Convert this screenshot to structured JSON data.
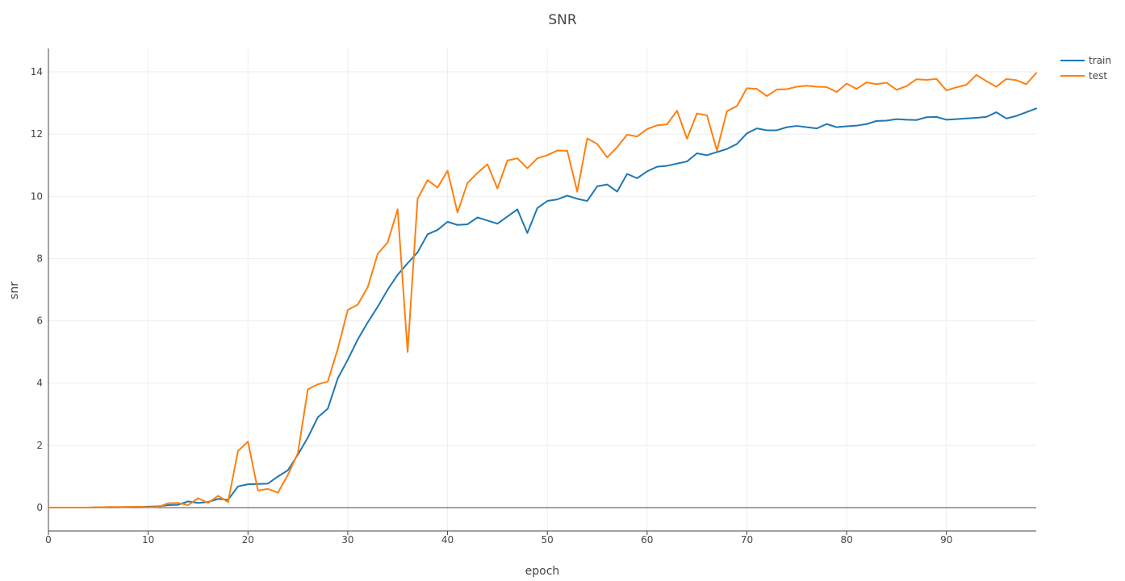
{
  "chart_data": {
    "type": "line",
    "title": "SNR",
    "xlabel": "epoch",
    "ylabel": "snr",
    "xlim": [
      0,
      99
    ],
    "ylim": [
      -0.75,
      14.75
    ],
    "xticks": [
      0,
      10,
      20,
      30,
      40,
      50,
      60,
      70,
      80,
      90
    ],
    "yticks": [
      0,
      2,
      4,
      6,
      8,
      10,
      12,
      14
    ],
    "grid": true,
    "legend_position": "top-right",
    "x": [
      0,
      1,
      2,
      3,
      4,
      5,
      6,
      7,
      8,
      9,
      10,
      11,
      12,
      13,
      14,
      15,
      16,
      17,
      18,
      19,
      20,
      21,
      22,
      23,
      24,
      25,
      26,
      27,
      28,
      29,
      30,
      31,
      32,
      33,
      34,
      35,
      36,
      37,
      38,
      39,
      40,
      41,
      42,
      43,
      44,
      45,
      46,
      47,
      48,
      49,
      50,
      51,
      52,
      53,
      54,
      55,
      56,
      57,
      58,
      59,
      60,
      61,
      62,
      63,
      64,
      65,
      66,
      67,
      68,
      69,
      70,
      71,
      72,
      73,
      74,
      75,
      76,
      77,
      78,
      79,
      80,
      81,
      82,
      83,
      84,
      85,
      86,
      87,
      88,
      89,
      90,
      91,
      92,
      93,
      94,
      95,
      96,
      97,
      98,
      99
    ],
    "series": [
      {
        "name": "train",
        "color": "#1f77b4",
        "values": [
          0,
          0,
          0,
          0,
          0,
          0.01,
          0.01,
          0.01,
          0.02,
          0.02,
          0.03,
          0.04,
          0.08,
          0.09,
          0.2,
          0.15,
          0.18,
          0.28,
          0.25,
          0.68,
          0.75,
          0.76,
          0.77,
          1.0,
          1.2,
          1.7,
          2.25,
          2.9,
          3.18,
          4.15,
          4.75,
          5.4,
          5.95,
          6.45,
          7.0,
          7.48,
          7.85,
          8.2,
          8.78,
          8.92,
          9.18,
          9.08,
          9.1,
          9.32,
          9.22,
          9.12,
          9.35,
          9.58,
          8.82,
          9.62,
          9.85,
          9.9,
          10.02,
          9.92,
          9.85,
          10.32,
          10.38,
          10.15,
          10.72,
          10.58,
          10.8,
          10.95,
          10.98,
          11.05,
          11.12,
          11.38,
          11.32,
          11.42,
          11.52,
          11.68,
          12.02,
          12.18,
          12.12,
          12.12,
          12.22,
          12.26,
          12.22,
          12.18,
          12.32,
          12.22,
          12.25,
          12.27,
          12.32,
          12.42,
          12.43,
          12.48,
          12.46,
          12.45,
          12.54,
          12.55,
          12.46,
          12.48,
          12.5,
          12.52,
          12.55,
          12.7,
          12.5,
          12.58,
          12.7,
          12.82
        ]
      },
      {
        "name": "test",
        "color": "#ff7f0e",
        "values": [
          0,
          0,
          0,
          0,
          0,
          0.01,
          0.02,
          0.02,
          0.02,
          0.03,
          0.01,
          0.02,
          0.14,
          0.15,
          0.08,
          0.3,
          0.15,
          0.38,
          0.18,
          1.82,
          2.12,
          0.55,
          0.6,
          0.48,
          1.05,
          1.75,
          3.8,
          3.96,
          4.05,
          5.1,
          6.35,
          6.52,
          7.08,
          8.15,
          8.52,
          9.58,
          5.0,
          9.92,
          10.52,
          10.28,
          10.82,
          9.48,
          10.43,
          10.75,
          11.03,
          10.25,
          11.15,
          11.22,
          10.9,
          11.22,
          11.32,
          11.47,
          11.46,
          10.15,
          11.86,
          11.68,
          11.25,
          11.58,
          11.98,
          11.92,
          12.16,
          12.28,
          12.31,
          12.75,
          11.85,
          12.66,
          12.6,
          11.47,
          12.73,
          12.9,
          13.47,
          13.45,
          13.22,
          13.43,
          13.44,
          13.52,
          13.55,
          13.52,
          13.51,
          13.35,
          13.62,
          13.45,
          13.66,
          13.6,
          13.65,
          13.42,
          13.54,
          13.76,
          13.74,
          13.77,
          13.4,
          13.5,
          13.58,
          13.9,
          13.7,
          13.52,
          13.77,
          13.73,
          13.6,
          13.96
        ]
      }
    ]
  }
}
